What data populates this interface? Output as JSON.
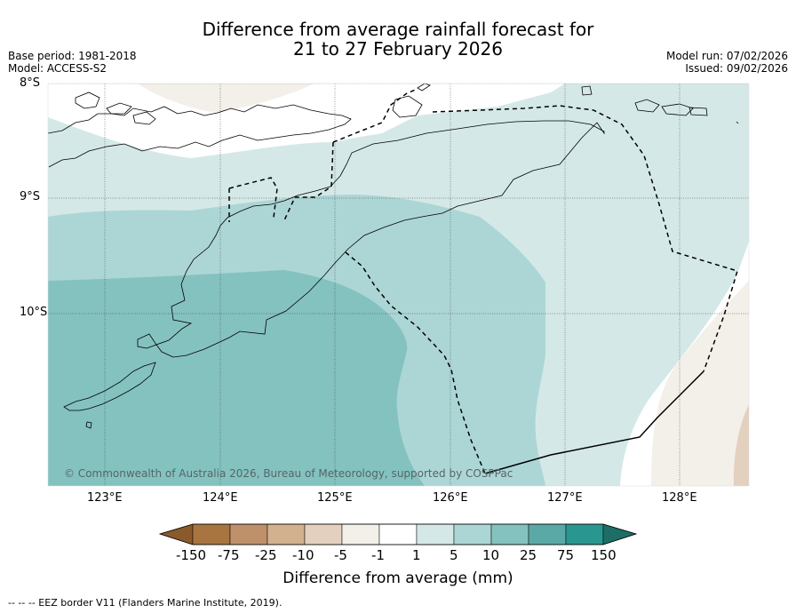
{
  "title": {
    "line1": "Difference from average rainfall forecast for",
    "line2": "21 to 27 February 2026"
  },
  "meta": {
    "base_period": "Base period: 1981-2018",
    "model": "Model: ACCESS-S2",
    "model_run": "Model run: 07/02/2026",
    "issued": "Issued: 09/02/2026"
  },
  "lat_labels": [
    "8°S",
    "9°S",
    "10°S"
  ],
  "lon_labels": [
    "123°E",
    "124°E",
    "125°E",
    "126°E",
    "127°E",
    "128°E"
  ],
  "copyright": "© Commonwealth of Australia 2026, Bureau of Meteorology, supported by COSPPac",
  "colorbar": {
    "title": "Difference from average (mm)",
    "tick_labels": [
      "-150",
      "-75",
      "-25",
      "-10",
      "-5",
      "-1",
      "1",
      "5",
      "10",
      "25",
      "75",
      "150"
    ],
    "colors": [
      "#8b5a2b",
      "#a87540",
      "#bf916a",
      "#d2b18f",
      "#e4d0be",
      "#f3efe9",
      "#ffffff",
      "#d4e9e7",
      "#acd6d5",
      "#84c2c0",
      "#5aa9a7",
      "#2a9690",
      "#1e6e68"
    ]
  },
  "footnote": "--  --  -- EEZ border V11 (Flanders Marine Institute, 2019)."
}
